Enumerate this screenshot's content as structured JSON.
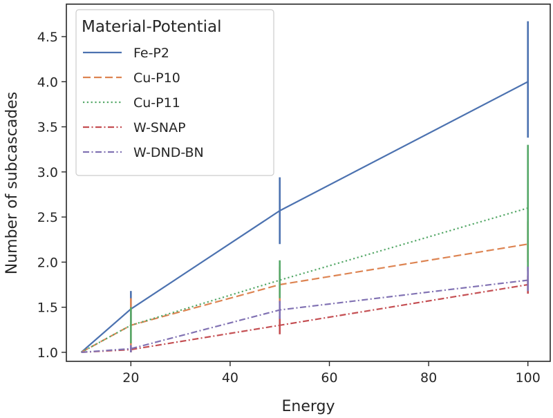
{
  "chart_data": {
    "type": "line",
    "xlabel": "Energy",
    "ylabel": "Number of subcascades",
    "xlim": [
      7,
      104.5
    ],
    "ylim": [
      0.9,
      4.86
    ],
    "x_ticks": [
      "20",
      "40",
      "60",
      "80",
      "100"
    ],
    "y_ticks": [
      "1.0",
      "1.5",
      "2.0",
      "2.5",
      "3.0",
      "3.5",
      "4.0",
      "4.5"
    ],
    "legend_title": "Material-Potential",
    "legend_position": "upper-left",
    "grid": false,
    "series": [
      {
        "name": "Fe-P2",
        "color": "#4c72b0",
        "dash": "solid",
        "x": [
          10,
          20,
          50,
          100
        ],
        "y": [
          1.0,
          1.48,
          2.57,
          4.0
        ],
        "err_low": [
          1.0,
          1.3,
          2.2,
          3.38
        ],
        "err_high": [
          1.0,
          1.68,
          2.94,
          4.67
        ]
      },
      {
        "name": "Cu-P10",
        "color": "#dd8452",
        "dash": "dashed",
        "x": [
          10,
          20,
          50,
          100
        ],
        "y": [
          1.0,
          1.3,
          1.75,
          2.2
        ],
        "err_low": [
          1.0,
          1.0,
          1.55,
          2.0
        ],
        "err_high": [
          1.0,
          1.6,
          1.95,
          2.45
        ]
      },
      {
        "name": "Cu-P11",
        "color": "#55a868",
        "dash": "dotted",
        "x": [
          10,
          20,
          50,
          100
        ],
        "y": [
          1.0,
          1.3,
          1.8,
          2.6
        ],
        "err_low": [
          1.0,
          1.1,
          1.6,
          1.9
        ],
        "err_high": [
          1.0,
          1.5,
          2.02,
          3.3
        ]
      },
      {
        "name": "W-SNAP",
        "color": "#c44e52",
        "dash": "dashdot",
        "x": [
          10,
          20,
          50,
          100
        ],
        "y": [
          1.0,
          1.03,
          1.3,
          1.75
        ],
        "err_low": [
          1.0,
          1.0,
          1.2,
          1.65
        ],
        "err_high": [
          1.0,
          1.06,
          1.4,
          1.85
        ]
      },
      {
        "name": "W-DND-BN",
        "color": "#8172b3",
        "dash": "dashdot",
        "x": [
          10,
          20,
          50,
          100
        ],
        "y": [
          1.0,
          1.04,
          1.47,
          1.8
        ],
        "err_low": [
          1.0,
          1.0,
          1.37,
          1.68
        ],
        "err_high": [
          1.0,
          1.08,
          1.57,
          1.95
        ]
      }
    ]
  }
}
